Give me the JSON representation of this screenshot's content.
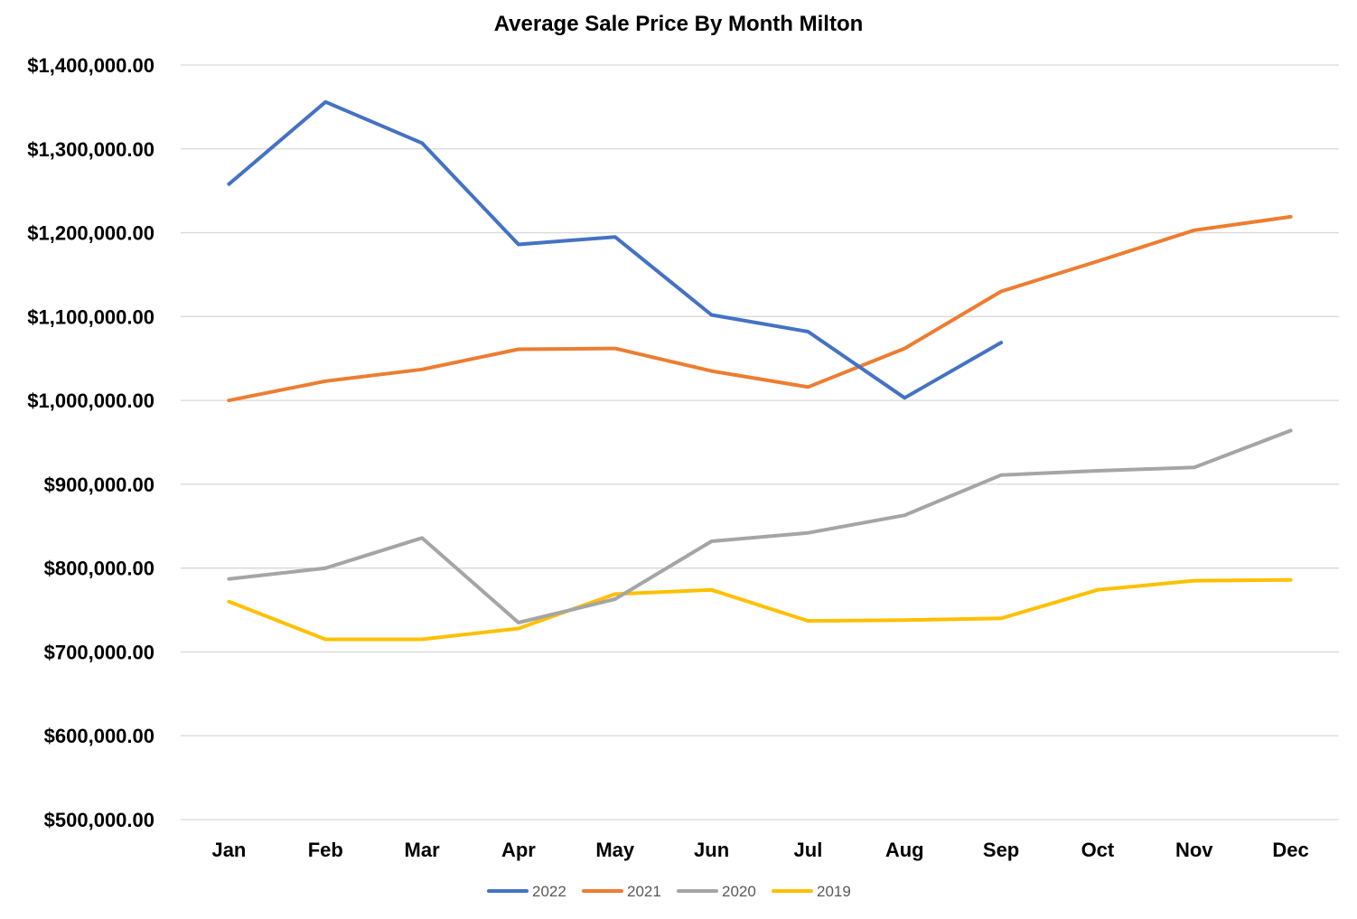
{
  "chart_data": {
    "type": "line",
    "title": "Average Sale Price By Month Milton",
    "xlabel": "",
    "ylabel": "",
    "categories": [
      "Jan",
      "Feb",
      "Mar",
      "Apr",
      "May",
      "Jun",
      "Jul",
      "Aug",
      "Sep",
      "Oct",
      "Nov",
      "Dec"
    ],
    "ylim": [
      500000,
      1400000
    ],
    "yticks": [
      500000,
      600000,
      700000,
      800000,
      900000,
      1000000,
      1100000,
      1200000,
      1300000,
      1400000
    ],
    "ytick_labels": [
      "$500,000.00",
      "$600,000.00",
      "$700,000.00",
      "$800,000.00",
      "$900,000.00",
      "$1,000,000.00",
      "$1,100,000.00",
      "$1,200,000.00",
      "$1,300,000.00",
      "$1,400,000.00"
    ],
    "grid": true,
    "legend_position": "bottom",
    "series": [
      {
        "name": "2022",
        "color": "#4472C4",
        "values": [
          1258000,
          1356000,
          1307000,
          1186000,
          1195000,
          1102000,
          1082000,
          1003000,
          1069000,
          null,
          null,
          null
        ]
      },
      {
        "name": "2021",
        "color": "#ED7D31",
        "values": [
          1000000,
          1023000,
          1037000,
          1061000,
          1062000,
          1035000,
          1016000,
          1062000,
          1130000,
          1166000,
          1203000,
          1219000
        ]
      },
      {
        "name": "2020",
        "color": "#A5A5A5",
        "values": [
          787000,
          800000,
          836000,
          735000,
          763000,
          832000,
          842000,
          863000,
          911000,
          916000,
          920000,
          964000
        ]
      },
      {
        "name": "2019",
        "color": "#FFC000",
        "values": [
          760000,
          715000,
          715000,
          728000,
          769000,
          774000,
          737000,
          738000,
          740000,
          774000,
          785000,
          786000
        ]
      }
    ]
  }
}
